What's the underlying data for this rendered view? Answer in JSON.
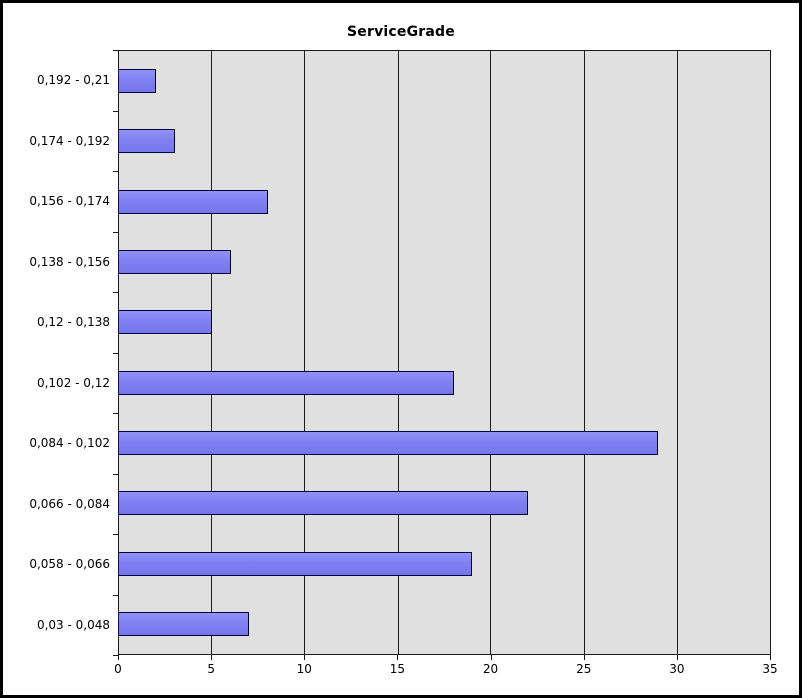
{
  "title": "ServiceGrade",
  "colors": {
    "bar_fill": "#8080f2",
    "bar_border": "#000040",
    "plot_background": "#e0e0e0",
    "gridline": "#1a1a1a",
    "frame_border": "#000000",
    "page_background": "#ffffff",
    "text": "#000000"
  },
  "chart_data": {
    "type": "bar",
    "orientation": "horizontal",
    "title": "ServiceGrade",
    "categories": [
      "0,192 - 0,21",
      "0,174 - 0,192",
      "0,156 - 0,174",
      "0,138 - 0,156",
      "0,12 - 0,138",
      "0,102 - 0,12",
      "0,084 - 0,102",
      "0,066 - 0,084",
      "0,058 - 0,066",
      "0,03 - 0,048"
    ],
    "values": [
      2,
      3,
      8,
      6,
      5,
      18,
      29,
      22,
      19,
      7
    ],
    "xlabel": "",
    "ylabel": "",
    "xlim": [
      0,
      35
    ],
    "xticks": [
      0,
      5,
      10,
      15,
      20,
      25,
      30,
      35
    ],
    "grid": true,
    "legend": false
  }
}
